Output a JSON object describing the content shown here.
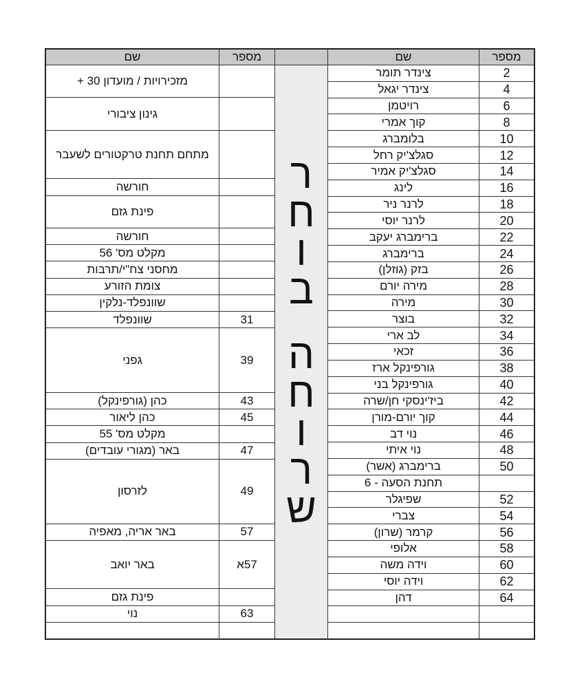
{
  "left_table": {
    "header_name": "שם",
    "header_number": "מספר",
    "rows": [
      {
        "name": "מזכירויות / מועדון 30 +",
        "number": "",
        "span": 2
      },
      {
        "name": "גינון ציבורי",
        "number": "",
        "span": 2
      },
      {
        "name": "מתחם תחנת טרקטורים לשעבר",
        "number": "",
        "span": 3
      },
      {
        "name": "חורשה",
        "number": "",
        "span": 1
      },
      {
        "name": "פינת גזם",
        "number": "",
        "span": 2
      },
      {
        "name": "חורשה",
        "number": "",
        "span": 1
      },
      {
        "name": "מקלט מס' 56",
        "number": "",
        "span": 1
      },
      {
        "name": "מחסני צח\"י/תרבות",
        "number": "",
        "span": 1
      },
      {
        "name": "צומת הזורע",
        "number": "",
        "span": 1
      },
      {
        "name": "שוונפלד-נלקין",
        "number": "",
        "span": 1
      },
      {
        "name": "שוונפלד",
        "number": "31",
        "span": 1
      },
      {
        "name": "גפני",
        "number": "39",
        "span": 4
      },
      {
        "name": "כהן (גורפינקל)",
        "number": "43",
        "span": 1
      },
      {
        "name": "כהן ליאור",
        "number": "45",
        "span": 1
      },
      {
        "name": "מקלט מס' 55",
        "number": "",
        "span": 1
      },
      {
        "name": "באר (מגורי עובדים)",
        "number": "47",
        "span": 1
      },
      {
        "name": "לזרסון",
        "number": "49",
        "span": 4
      },
      {
        "name": "באר אריה, מאפיה",
        "number": "57",
        "span": 1
      },
      {
        "name": "באר יואב",
        "number": "57א",
        "span": 3
      },
      {
        "name": "פינת גזם",
        "number": "",
        "span": 1
      },
      {
        "name": "נוי",
        "number": "63",
        "span": 1
      },
      {
        "name": "",
        "number": "",
        "span": 1
      }
    ]
  },
  "street_name": "רחוב החורש",
  "right_table": {
    "header_name": "שם",
    "header_number": "מספר",
    "rows": [
      {
        "name": "צינדר תומר",
        "number": "2"
      },
      {
        "name": "צינדר יגאל",
        "number": "4"
      },
      {
        "name": "רויטמן",
        "number": "6"
      },
      {
        "name": "קוך אמרי",
        "number": "8"
      },
      {
        "name": "בלומברג",
        "number": "10"
      },
      {
        "name": "סגלצ'יק רחל",
        "number": "12"
      },
      {
        "name": "סגלצ'יק אמיר",
        "number": "14"
      },
      {
        "name": "לינג",
        "number": "16"
      },
      {
        "name": "לרנר ניר",
        "number": "18"
      },
      {
        "name": "לרנר יוסי",
        "number": "20"
      },
      {
        "name": "ברימברג יעקב",
        "number": "22"
      },
      {
        "name": "ברימברג",
        "number": "24"
      },
      {
        "name": "בזק (גוזלן)",
        "number": "26"
      },
      {
        "name": "מירה יורם",
        "number": "28"
      },
      {
        "name": "מירה",
        "number": "30"
      },
      {
        "name": "בוצר",
        "number": "32"
      },
      {
        "name": "לב ארי",
        "number": "34"
      },
      {
        "name": "זכאי",
        "number": "36"
      },
      {
        "name": "גורפינקל ארז",
        "number": "38"
      },
      {
        "name": "גורפינקל בני",
        "number": "40"
      },
      {
        "name": "ביז'ינסקי חן/שרה",
        "number": "42"
      },
      {
        "name": "קוך יורם-מורן",
        "number": "44"
      },
      {
        "name": "נוי דב",
        "number": "46"
      },
      {
        "name": "נוי איתי",
        "number": "48"
      },
      {
        "name": "ברימברג (אשר)",
        "number": "50"
      },
      {
        "name": "תחנת הסעה - 6",
        "number": ""
      },
      {
        "name": "שפיגלר",
        "number": "52"
      },
      {
        "name": "צברי",
        "number": "54"
      },
      {
        "name": "קרמר (שרון)",
        "number": "56"
      },
      {
        "name": "אלופי",
        "number": "58"
      },
      {
        "name": "וידה משה",
        "number": "60"
      },
      {
        "name": "וידה יוסי",
        "number": "62"
      },
      {
        "name": "דהן",
        "number": "64"
      },
      {
        "name": "",
        "number": ""
      },
      {
        "name": "",
        "number": ""
      }
    ]
  }
}
